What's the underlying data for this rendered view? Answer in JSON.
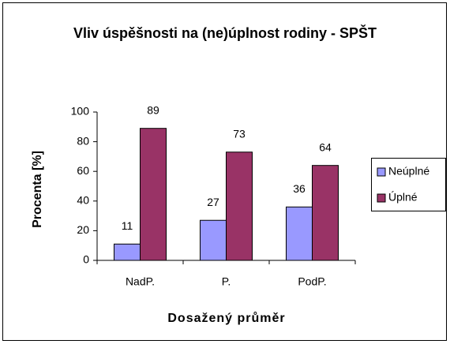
{
  "chart_data": {
    "type": "bar",
    "title": "Vliv úspěšnosti na (ne)úplnost rodiny - SPŠT",
    "x_label": "Dosažený průměr",
    "y_label": "Procenta [%]",
    "categories": [
      "NadP.",
      "P.",
      "PodP."
    ],
    "series": [
      {
        "name": "Neúplné",
        "color": "#9999ff",
        "values": [
          11,
          27,
          36
        ]
      },
      {
        "name": "Úplné",
        "color": "#993366",
        "values": [
          89,
          73,
          64
        ]
      }
    ],
    "ylim": [
      0,
      100
    ],
    "yticks": [
      0,
      20,
      40,
      60,
      80,
      100
    ],
    "legend": "right"
  }
}
